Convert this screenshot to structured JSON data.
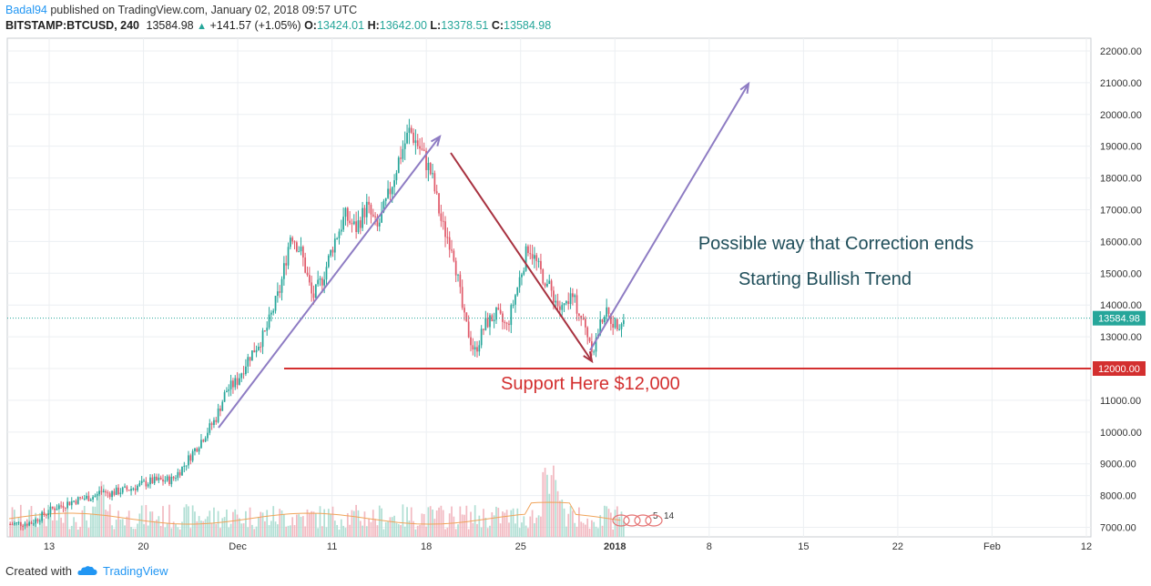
{
  "header": {
    "author": "Badal94",
    "published": "published on TradingView.com, January 02, 2018 09:57 UTC",
    "symbol": "BITSTAMP:BTCUSD, 240",
    "last": "13584.98",
    "change": "+141.57 (+1.05%)",
    "o_label": "O:",
    "o": "13424.01",
    "h_label": "H:",
    "h": "13642.00",
    "l_label": "L:",
    "l": "13378.51",
    "c_label": "C:",
    "c": "13584.98"
  },
  "footer": {
    "created_with": "Created with",
    "brand": "TradingView"
  },
  "colors": {
    "up": "#26a69a",
    "down": "#e05a6a",
    "support": "#d32f2f",
    "arrow_up": "#8e7cc3",
    "arrow_down": "#a83240",
    "annotation_text": "#1f4e5a",
    "price_badge": "#26a69a"
  },
  "chart_data": {
    "type": "candlestick",
    "symbol": "BITSTAMP:BTCUSD",
    "interval": "240",
    "y_ticks": [
      "7000.00",
      "8000.00",
      "9000.00",
      "10000.00",
      "11000.00",
      "12000.00",
      "13000.00",
      "14000.00",
      "15000.00",
      "16000.00",
      "17000.00",
      "18000.00",
      "19000.00",
      "20000.00",
      "21000.00",
      "22000.00"
    ],
    "ylim": [
      6700,
      22400
    ],
    "x_ticks": [
      "13",
      "20",
      "Dec",
      "11",
      "18",
      "25",
      "2018",
      "8",
      "15",
      "22",
      "Feb",
      "12"
    ],
    "current_price": "13584.98",
    "support_label_value": "12000.00",
    "support_value": 12000,
    "annotations": {
      "line1": "Possible way that Correction ends",
      "line2": "Starting Bullish Trend",
      "support": "Support Here $12,000"
    },
    "price_path": [
      [
        0,
        7100
      ],
      [
        10,
        7150
      ],
      [
        20,
        7600
      ],
      [
        30,
        7850
      ],
      [
        40,
        8000
      ],
      [
        55,
        8200
      ],
      [
        65,
        8450
      ],
      [
        75,
        8500
      ],
      [
        80,
        8900
      ],
      [
        88,
        9700
      ],
      [
        95,
        10400
      ],
      [
        100,
        11300
      ],
      [
        105,
        11600
      ],
      [
        110,
        12300
      ],
      [
        118,
        13100
      ],
      [
        125,
        14500
      ],
      [
        130,
        16300
      ],
      [
        135,
        15600
      ],
      [
        140,
        14200
      ],
      [
        145,
        14900
      ],
      [
        150,
        16000
      ],
      [
        155,
        16800
      ],
      [
        160,
        16400
      ],
      [
        165,
        17100
      ],
      [
        170,
        16400
      ],
      [
        175,
        17400
      ],
      [
        180,
        18600
      ],
      [
        185,
        19500
      ],
      [
        190,
        18900
      ],
      [
        195,
        18100
      ],
      [
        200,
        16500
      ],
      [
        205,
        15800
      ],
      [
        210,
        13600
      ],
      [
        215,
        12500
      ],
      [
        220,
        13400
      ],
      [
        225,
        13700
      ],
      [
        230,
        13300
      ],
      [
        235,
        14600
      ],
      [
        240,
        15900
      ],
      [
        245,
        15100
      ],
      [
        250,
        14500
      ],
      [
        255,
        13800
      ],
      [
        260,
        14300
      ],
      [
        265,
        13500
      ],
      [
        270,
        12600
      ],
      [
        275,
        13800
      ],
      [
        280,
        13400
      ],
      [
        285,
        13580
      ]
    ],
    "volume_ticks": [
      "7000.00",
      "8000.00"
    ],
    "volume_overlay_labels": [
      "5",
      "14"
    ]
  }
}
